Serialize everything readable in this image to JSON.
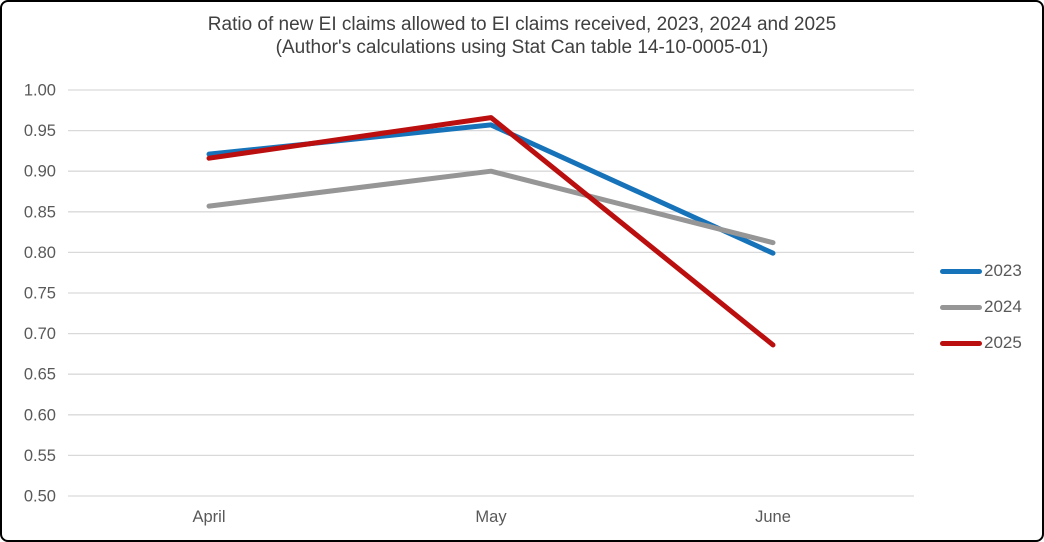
{
  "title": {
    "line1": "Ratio of new EI claims allowed to EI claims received, 2023, 2024 and 2025",
    "line2": "(Author's calculations using Stat Can table 14-10-0005-01)"
  },
  "chart_data": {
    "type": "line",
    "categories": [
      "April",
      "May",
      "June"
    ],
    "series": [
      {
        "name": "2023",
        "color": "#1673b9",
        "values": [
          0.921,
          0.957,
          0.799
        ]
      },
      {
        "name": "2024",
        "color": "#969696",
        "values": [
          0.857,
          0.9,
          0.812
        ]
      },
      {
        "name": "2025",
        "color": "#bb0e0e",
        "values": [
          0.916,
          0.966,
          0.686
        ]
      }
    ],
    "ylim": [
      0.5,
      1.0
    ],
    "ytick_step": 0.05,
    "yticks": [
      "1.00",
      "0.95",
      "0.90",
      "0.85",
      "0.80",
      "0.75",
      "0.70",
      "0.65",
      "0.60",
      "0.55",
      "0.50"
    ],
    "xlabel": "",
    "ylabel": "",
    "grid": "horizontal",
    "gridline_color": "#d9d9d9",
    "tick_label_color": "#595959",
    "legend_position": "right",
    "line_width": 5
  }
}
